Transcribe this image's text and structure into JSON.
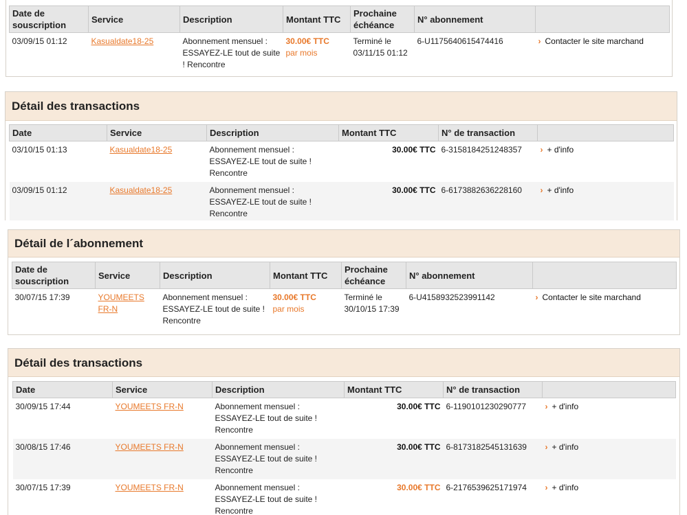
{
  "sub1": {
    "headers": [
      "Date de souscription",
      "Service",
      "Description",
      "Montant TTC",
      "Prochaine échéance",
      "N° abonnement",
      ""
    ],
    "row": {
      "date": "03/09/15 01:12",
      "service": "Kasualdate18-25",
      "description": "Abonnement mensuel : ESSAYEZ-LE tout de suite ! Rencontre",
      "amount": "30.00€ TTC",
      "amount_sub": "par mois",
      "next": "Terminé le 03/11/15 01:12",
      "number": "6-U1175640615474416",
      "action": "Contacter le site marchand"
    }
  },
  "tx1": {
    "title": "Détail des transactions",
    "headers": [
      "Date",
      "Service",
      "Description",
      "Montant TTC",
      "N° de transaction",
      ""
    ],
    "rows": [
      {
        "date": "03/10/15 01:13",
        "service": "Kasualdate18-25",
        "description": "Abonnement mensuel : ESSAYEZ-LE tout de suite ! Rencontre",
        "amount": "30.00€ TTC",
        "number": "6-3158184251248357",
        "action": "+ d'info"
      },
      {
        "date": "03/09/15 01:12",
        "service": "Kasualdate18-25",
        "description": "Abonnement mensuel : ESSAYEZ-LE tout de suite ! Rencontre",
        "amount": "30.00€ TTC",
        "number": "6-6173882636228160",
        "action": "+ d'info"
      }
    ]
  },
  "sub2": {
    "title": "Détail de l´abonnement",
    "headers": [
      "Date de souscription",
      "Service",
      "Description",
      "Montant TTC",
      "Prochaine échéance",
      "N° abonnement",
      ""
    ],
    "row": {
      "date": "30/07/15 17:39",
      "service": "YOUMEETS FR-N",
      "description": "Abonnement mensuel : ESSAYEZ-LE tout de suite ! Rencontre",
      "amount": "30.00€ TTC",
      "amount_sub": "par mois",
      "next": "Terminé le 30/10/15 17:39",
      "number": "6-U4158932523991142",
      "action": "Contacter le site marchand"
    }
  },
  "tx2": {
    "title": "Détail des transactions",
    "headers": [
      "Date",
      "Service",
      "Description",
      "Montant TTC",
      "N° de transaction",
      ""
    ],
    "rows": [
      {
        "date": "30/09/15 17:44",
        "service": "YOUMEETS FR-N",
        "description": "Abonnement mensuel : ESSAYEZ-LE tout de suite ! Rencontre",
        "amount": "30.00€ TTC",
        "number": "6-1190101230290777",
        "action": "+ d'info"
      },
      {
        "date": "30/08/15 17:46",
        "service": "YOUMEETS FR-N",
        "description": "Abonnement mensuel : ESSAYEZ-LE tout de suite ! Rencontre",
        "amount": "30.00€ TTC",
        "number": "6-8173182545131639",
        "action": "+ d'info"
      },
      {
        "date": "30/07/15 17:39",
        "service": "YOUMEETS FR-N",
        "description": "Abonnement mensuel : ESSAYEZ-LE tout de suite ! Rencontre",
        "amount": "30.00€ TTC",
        "number": "6-2176539625171974",
        "action": "+ d'info"
      }
    ]
  },
  "colors": {
    "accent": "#e8782a",
    "panel_header": "#f7e9da",
    "table_header": "#e6e6e6"
  },
  "icons": {
    "action_chevron": "chevron-right-icon"
  }
}
